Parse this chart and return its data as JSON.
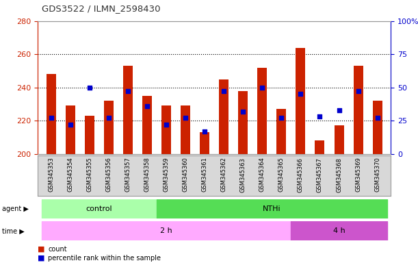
{
  "title": "GDS3522 / ILMN_2598430",
  "samples": [
    "GSM345353",
    "GSM345354",
    "GSM345355",
    "GSM345356",
    "GSM345357",
    "GSM345358",
    "GSM345359",
    "GSM345360",
    "GSM345361",
    "GSM345362",
    "GSM345363",
    "GSM345364",
    "GSM345365",
    "GSM345366",
    "GSM345367",
    "GSM345368",
    "GSM345369",
    "GSM345370"
  ],
  "counts": [
    248,
    229,
    223,
    232,
    253,
    235,
    229,
    229,
    213,
    245,
    238,
    252,
    227,
    264,
    208,
    217,
    253,
    232
  ],
  "percentile_ranks": [
    27,
    22,
    50,
    27,
    47,
    36,
    22,
    27,
    17,
    47,
    32,
    50,
    27,
    45,
    28,
    33,
    47,
    27
  ],
  "ylim_left": [
    200,
    280
  ],
  "ylim_right": [
    0,
    100
  ],
  "yticks_left": [
    200,
    220,
    240,
    260,
    280
  ],
  "yticks_right": [
    0,
    25,
    50,
    75,
    100
  ],
  "bar_color": "#cc2200",
  "dot_color": "#0000cc",
  "grid_lines": [
    220,
    240,
    260
  ],
  "agent_colors": [
    "#aaffaa",
    "#55dd55"
  ],
  "agent_labels": [
    "control",
    "NTHi"
  ],
  "time_colors": [
    "#ffaaff",
    "#cc55cc"
  ],
  "time_labels": [
    "2 h",
    "4 h"
  ],
  "sample_bg_color": "#d8d8d8",
  "left_tick_color": "#cc2200",
  "right_tick_color": "#0000cc",
  "title_color": "#333333"
}
